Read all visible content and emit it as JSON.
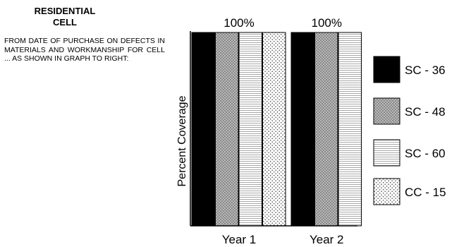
{
  "panel": {
    "heading_line1": "RESIDENTIAL",
    "heading_line2": "CELL",
    "description": "FROM DATE OF PURCHASE ON DEFECTS IN MATERIALS AND WORKMANSHIP FOR CELL ... AS SHOWN IN GRAPH TO RIGHT:"
  },
  "chart_data": {
    "type": "bar",
    "ylabel": "Percent Coverage",
    "xlabel": "",
    "ylim": [
      0,
      100
    ],
    "grid": false,
    "legend_position": "right",
    "categories": [
      "Year 1",
      "Year 2"
    ],
    "category_labels": [
      "100%",
      "100%"
    ],
    "series": [
      {
        "name": "SC - 36",
        "values": [
          100,
          100
        ],
        "pattern": "solid-black"
      },
      {
        "name": "SC - 48",
        "values": [
          100,
          100
        ],
        "pattern": "dense-dots"
      },
      {
        "name": "SC - 60",
        "values": [
          100,
          100
        ],
        "pattern": "horizontal-lines"
      },
      {
        "name": "CC - 15",
        "values": [
          100,
          null
        ],
        "pattern": "sparse-dots"
      }
    ]
  }
}
